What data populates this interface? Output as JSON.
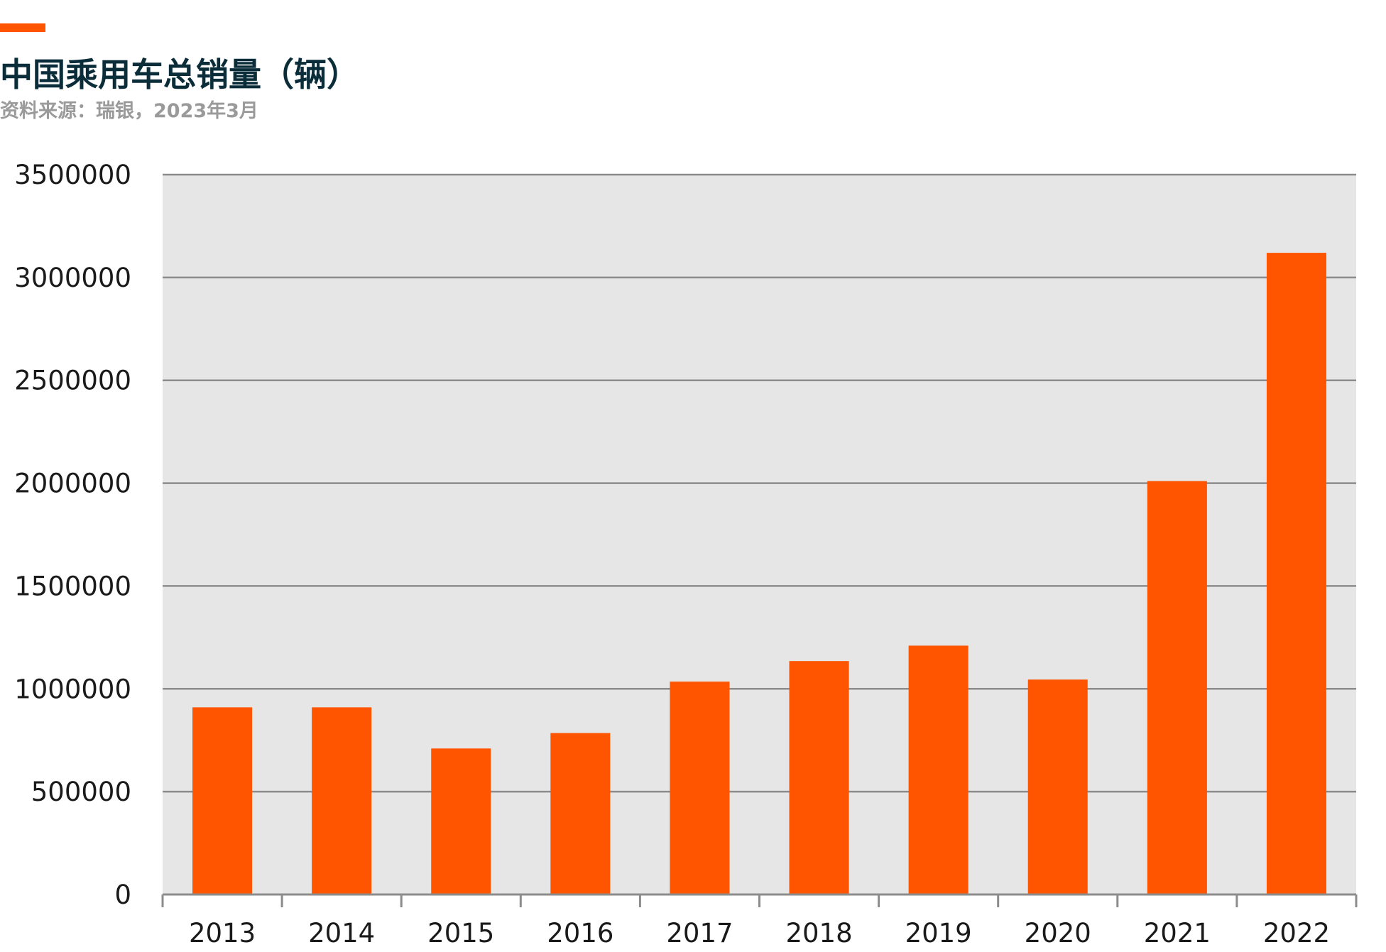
{
  "header": {
    "title": "中国乘用车总销量（辆）",
    "source": "资料来源：瑞银，2023年3月"
  },
  "colors": {
    "accent": "#ff5500",
    "bar": "#ff5500",
    "plot_background": "#e6e6e6",
    "gridline": "#8c8c8c",
    "title": "#0b2d3a",
    "subtitle": "#9a9a9a"
  },
  "chart_data": {
    "type": "bar",
    "title": "中国乘用车总销量（辆）",
    "categories": [
      "2013",
      "2014",
      "2015",
      "2016",
      "2017",
      "2018",
      "2019",
      "2020",
      "2021",
      "2022"
    ],
    "values": [
      910000,
      910000,
      710000,
      785000,
      1035000,
      1135000,
      1210000,
      1045000,
      2010000,
      3120000
    ],
    "ylim": [
      0,
      3500000
    ],
    "yticks": [
      "0",
      "500000",
      "1000000",
      "1500000",
      "2000000",
      "2500000",
      "3000000",
      "3500000"
    ],
    "ytick_values": [
      0,
      500000,
      1000000,
      1500000,
      2000000,
      2500000,
      3000000,
      3500000
    ],
    "grid": true,
    "legend": "none",
    "xlabel": "",
    "ylabel": ""
  }
}
